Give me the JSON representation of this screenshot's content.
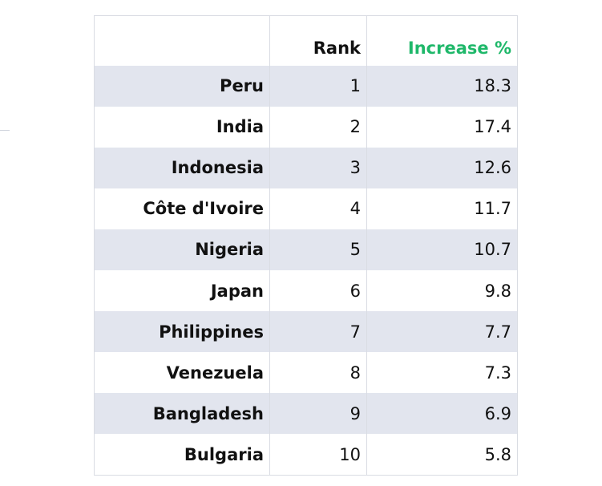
{
  "chart_data": {
    "type": "table",
    "columns": [
      "",
      "Rank",
      "Increase %"
    ],
    "rows": [
      {
        "country": "Peru",
        "rank": "1",
        "increase": "18.3"
      },
      {
        "country": "India",
        "rank": "2",
        "increase": "17.4"
      },
      {
        "country": "Indonesia",
        "rank": "3",
        "increase": "12.6"
      },
      {
        "country": "Côte d'Ivoire",
        "rank": "4",
        "increase": "11.7"
      },
      {
        "country": "Nigeria",
        "rank": "5",
        "increase": "10.7"
      },
      {
        "country": "Japan",
        "rank": "6",
        "increase": "9.8"
      },
      {
        "country": "Philippines",
        "rank": "7",
        "increase": "7.7"
      },
      {
        "country": "Venezuela",
        "rank": "8",
        "increase": "7.3"
      },
      {
        "country": "Bangladesh",
        "rank": "9",
        "increase": "6.9"
      },
      {
        "country": "Bulgaria",
        "rank": "10",
        "increase": "5.8"
      }
    ],
    "colors": {
      "header_accent": "#1fb86a",
      "alt_row": "#e2e5ee",
      "border": "#d9dce3"
    }
  }
}
